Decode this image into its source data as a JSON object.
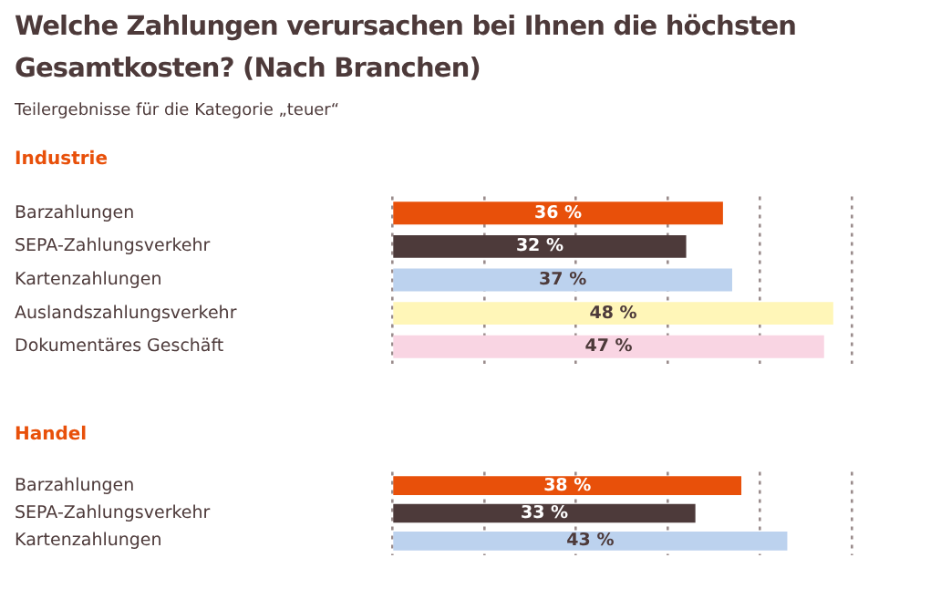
{
  "chart_data": [
    {
      "type": "bar",
      "orientation": "horizontal",
      "title": "Welche Zahlungen verursachen bei Ihnen die höchsten Gesamtkosten? (Nach Branchen)",
      "subtitle": "Teilergebnisse für die Kategorie „teuer“",
      "annotations": [
        "Industrie"
      ],
      "categories": [
        "Barzahlungen",
        "SEPA-Zahlungsverkehr",
        "Kartenzahlungen",
        "Auslandszahlungsverkehr",
        "Dokumentäres Geschäft"
      ],
      "values": [
        36,
        32,
        37,
        48,
        47
      ],
      "colors": [
        "#e8500a",
        "#4d3a3a",
        "#bcd2ee",
        "#fff6b8",
        "#f9d5e3"
      ],
      "data_labels": true,
      "value_labels": [
        "36 %",
        "32 %",
        "37 %",
        "48 %",
        "47 %"
      ],
      "xlim": [
        0,
        50
      ],
      "xticks": [
        {
          "value": 0,
          "label": null
        },
        {
          "value": 10,
          "label": null
        },
        {
          "value": 20,
          "label": null
        },
        {
          "value": 30,
          "label": null
        },
        {
          "value": 40,
          "label": null
        },
        {
          "value": 50,
          "label": null
        }
      ],
      "grid": "x",
      "tick_labels": "y",
      "legend": false
    },
    {
      "type": "bar",
      "orientation": "horizontal",
      "annotations": [
        "Handel"
      ],
      "categories": [
        "Barzahlungen",
        "SEPA-Zahlungsverkehr",
        "Kartenzahlungen"
      ],
      "values": [
        38,
        33,
        43
      ],
      "colors": [
        "#e8500a",
        "#4d3a3a",
        "#bcd2ee"
      ],
      "data_labels": true,
      "value_labels": [
        "38 %",
        "33 %",
        "43 %"
      ],
      "xlim": [
        0,
        50
      ],
      "xticks": [
        {
          "value": 0,
          "label": null
        },
        {
          "value": 10,
          "label": null
        },
        {
          "value": 20,
          "label": null
        },
        {
          "value": 30,
          "label": null
        },
        {
          "value": 40,
          "label": null
        },
        {
          "value": 50,
          "label": null
        }
      ],
      "grid": "x",
      "tick_labels": "y",
      "legend": false
    }
  ]
}
